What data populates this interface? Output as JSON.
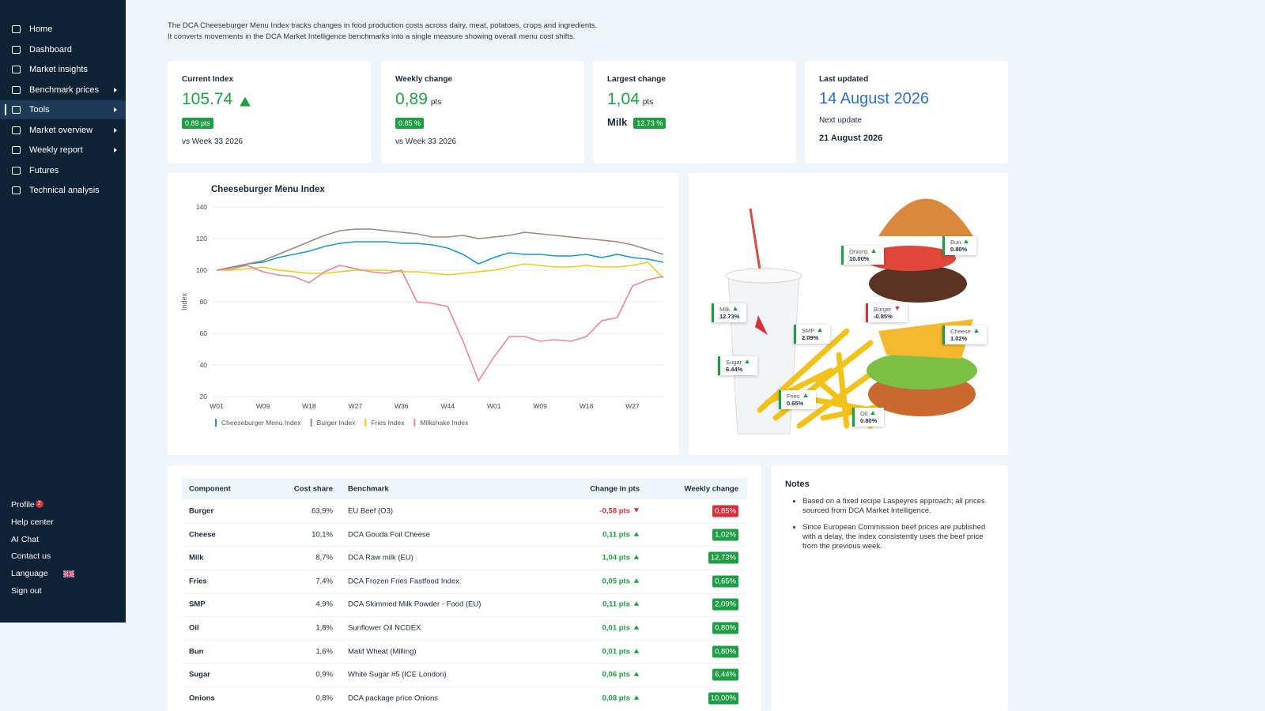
{
  "sidebar": {
    "nav": [
      "Home",
      "Dashboard",
      "Market insights",
      "Benchmark prices",
      "Tools",
      "Market overview",
      "Weekly report",
      "Futures",
      "Technical analysis"
    ],
    "submenus": [
      false,
      false,
      false,
      true,
      true,
      true,
      true,
      false,
      false
    ],
    "active": 4,
    "bottom": [
      "Profile",
      "Help center",
      "AI Chat",
      "Contact us",
      "Language",
      "Sign out"
    ],
    "profile_badge": "2"
  },
  "intro": [
    "The DCA Cheeseburger Menu Index tracks changes in food production costs across dairy, meat, potatoes, crops and ingredients.",
    "It converts movements in the DCA Market Intelligence benchmarks into a single measure showing overall menu cost shifts."
  ],
  "cards": {
    "current": {
      "label": "Current Index",
      "value": "105.74",
      "badge": "0,89 pts",
      "sub": "vs Week 33 2026"
    },
    "weekly": {
      "label": "Weekly change",
      "value": "0,89",
      "unit": "pts",
      "badge": "0.85 %",
      "sub": "vs Week 33 2026"
    },
    "largest": {
      "label": "Largest change",
      "value": "1,04",
      "unit": "pts",
      "component": "Milk",
      "badge": "12.73 %"
    },
    "updated": {
      "label": "Last updated",
      "value": "14 August 2026",
      "next_label": "Next update",
      "next": "21 August 2026"
    }
  },
  "chart_data": {
    "type": "line",
    "title": "Cheeseburger Menu Index",
    "y_label": "Index",
    "categories": [
      "W01",
      null,
      null,
      "W09",
      null,
      null,
      "W18",
      null,
      null,
      "W27",
      null,
      null,
      "W36",
      null,
      null,
      "W44",
      null,
      null,
      "W01",
      null,
      null,
      "W09",
      null,
      null,
      "W18",
      null,
      null,
      "W27",
      null,
      null
    ],
    "ylim": [
      20,
      140
    ],
    "yticks": [
      20,
      40,
      60,
      80,
      100,
      120,
      140
    ],
    "grid": true,
    "series": [
      {
        "name": "Cheeseburger Menu Index",
        "color": "#1a9bc0",
        "values": [
          100,
          101,
          104,
          105,
          108,
          110,
          112,
          115,
          117,
          118,
          118,
          118,
          117,
          117,
          116,
          114,
          110,
          104,
          108,
          111,
          110,
          110,
          109,
          109,
          110,
          108,
          110,
          108,
          107,
          105
        ]
      },
      {
        "name": "Burger Index",
        "color": "#9a8a80",
        "values": [
          100,
          102,
          104,
          106,
          110,
          114,
          118,
          122,
          125,
          126,
          126,
          125,
          124,
          123,
          121,
          121,
          122,
          120,
          121,
          122,
          124,
          123,
          122,
          121,
          120,
          119,
          118,
          116,
          113,
          110
        ]
      },
      {
        "name": "Fries Index",
        "color": "#e2cf1c",
        "values": [
          100,
          100,
          101,
          102,
          100,
          99,
          98,
          98,
          99,
          100,
          100,
          100,
          99,
          99,
          98,
          97,
          98,
          99,
          100,
          102,
          104,
          103,
          102,
          102,
          103,
          102,
          102,
          103,
          105,
          95
        ]
      },
      {
        "name": "Milkshake Index",
        "color": "#e8879a",
        "values": [
          100,
          101,
          103,
          99,
          97,
          96,
          92,
          99,
          103,
          101,
          99,
          98,
          100,
          80,
          79,
          77,
          55,
          30,
          45,
          58,
          58,
          55,
          56,
          55,
          58,
          68,
          70,
          90,
          94,
          96
        ]
      }
    ]
  },
  "image_tags": [
    {
      "name": "Onions",
      "value": "10.00%",
      "direction": "up"
    },
    {
      "name": "Bun",
      "value": "0.80%",
      "direction": "up"
    },
    {
      "name": "Milk",
      "value": "12.73%",
      "direction": "up"
    },
    {
      "name": "Burger",
      "value": "-0.85%",
      "direction": "down"
    },
    {
      "name": "SMP",
      "value": "2.09%",
      "direction": "up"
    },
    {
      "name": "Cheese",
      "value": "1.02%",
      "direction": "up"
    },
    {
      "name": "Sugar",
      "value": "6.44%",
      "direction": "up"
    },
    {
      "name": "Fries",
      "value": "0.65%",
      "direction": "up"
    },
    {
      "name": "Oil",
      "value": "0.80%",
      "direction": "up"
    }
  ],
  "table": {
    "headers": [
      "Component",
      "Cost share",
      "Benchmark",
      "Change in pts",
      "Weekly change"
    ],
    "rows": [
      [
        "Burger",
        "63,9%",
        "EU Beef (O3)",
        "-0,58 pts",
        "0,85%",
        "down"
      ],
      [
        "Cheese",
        "10,1%",
        "DCA Gouda Foil Cheese",
        "0,11 pts",
        "1,02%",
        "up"
      ],
      [
        "Milk",
        "8,7%",
        "DCA Raw milk (EU)",
        "1,04 pts",
        "12,73%",
        "up"
      ],
      [
        "Fries",
        "7,4%",
        "DCA Frozen Fries Fastfood Index",
        "0,05 pts",
        "0,65%",
        "up"
      ],
      [
        "SMP",
        "4,9%",
        "DCA Skimmed Milk Powder - Food (EU)",
        "0,11 pts",
        "2,09%",
        "up"
      ],
      [
        "Oil",
        "1,8%",
        "Sunflower Oil NCDEX",
        "0,01 pts",
        "0,80%",
        "up"
      ],
      [
        "Bun",
        "1,6%",
        "Matif Wheat (Milling)",
        "0,01 pts",
        "0,80%",
        "up"
      ],
      [
        "Sugar",
        "0,9%",
        "White Sugar #5 (ICE London)",
        "0,06 pts",
        "6,44%",
        "up"
      ],
      [
        "Onions",
        "0,8%",
        "DCA package price Onions",
        "0,08 pts",
        "10,00%",
        "up"
      ]
    ]
  },
  "notes": {
    "title": "Notes",
    "items": [
      "Based on a fixed recipe Laspeyres approach; all prices sourced from DCA Market Intelligence.",
      "Since European Commission beef prices are published with a delay, the index consistently uses the beef price from the previous week."
    ]
  }
}
